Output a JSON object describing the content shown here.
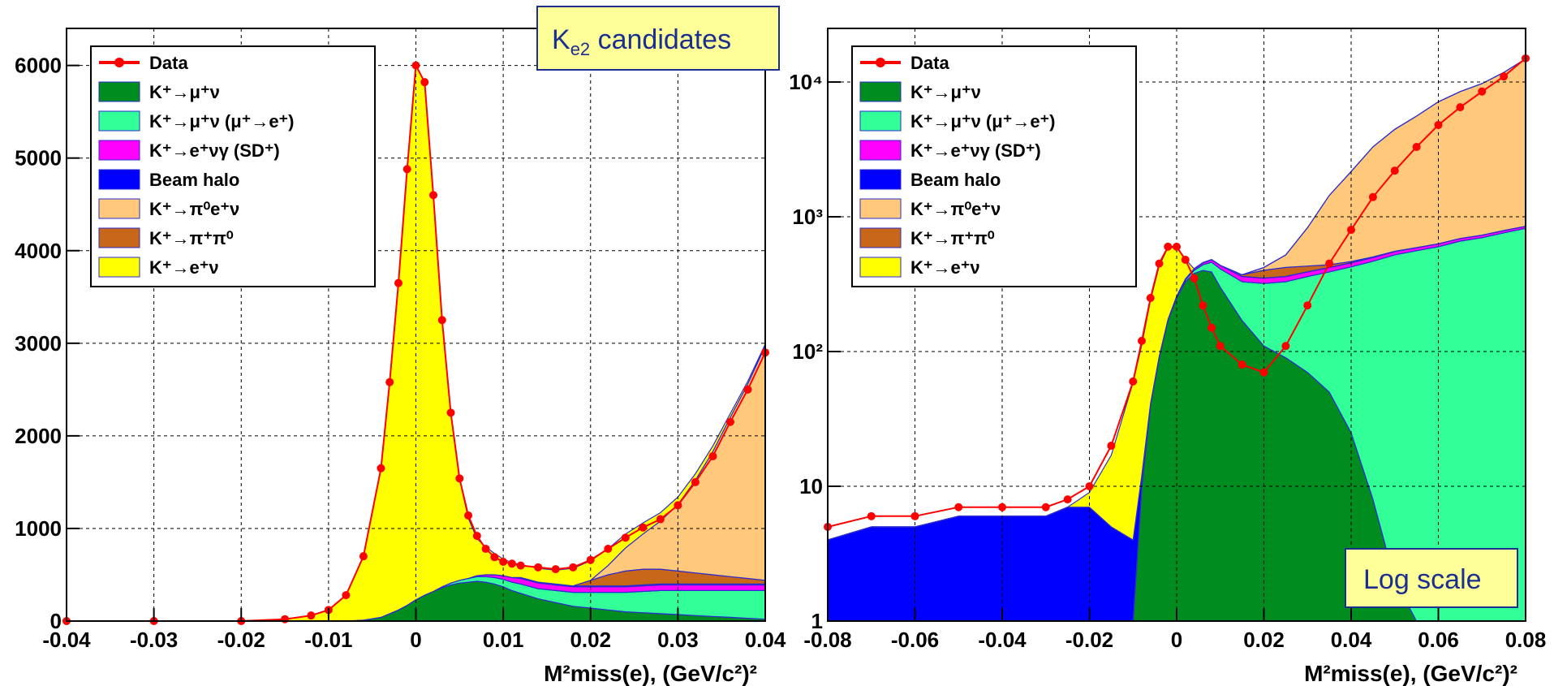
{
  "annotations": {
    "title_main": "K",
    "title_sub": "e2",
    "title_rest": " candidates",
    "log_note": "Log scale"
  },
  "colors": {
    "data": "#ff0000",
    "kmu2": "#008c1e",
    "kmu2_decay": "#33ff99",
    "sd": "#ff00ff",
    "halo": "#0000ff",
    "ke3": "#ffc87a",
    "k2pi": "#c8661a",
    "ke2": "#ffff00",
    "outline": "#2b2bd0"
  },
  "legend": [
    {
      "key": "data",
      "parts": [
        [
          "K",
          ""
        ]
      ],
      "label": "Data"
    },
    {
      "key": "kmu2",
      "label": "K⁺→μ⁺ν"
    },
    {
      "key": "kmu2_decay",
      "label": "K⁺→μ⁺ν (μ⁺→e⁺)"
    },
    {
      "key": "sd",
      "label": "K⁺→e⁺νγ (SD⁺)"
    },
    {
      "key": "halo",
      "label": "Beam halo"
    },
    {
      "key": "ke3",
      "label": "K⁺→π⁰e⁺ν"
    },
    {
      "key": "k2pi",
      "label": "K⁺→π⁺π⁰"
    },
    {
      "key": "ke2",
      "label": "K⁺→e⁺ν"
    }
  ],
  "chart_data": [
    {
      "type": "area",
      "scale": "linear",
      "xlabel": "M²miss(e), (GeV/c²)²",
      "xlim": [
        -0.04,
        0.04
      ],
      "ylim": [
        0,
        6400
      ],
      "xticks": [
        "-0.04",
        "-0.03",
        "-0.02",
        "-0.01",
        "0",
        "0.01",
        "0.02",
        "0.03",
        "0.04"
      ],
      "yticks": [
        "0",
        "1000",
        "2000",
        "3000",
        "4000",
        "5000",
        "6000"
      ],
      "grid": true,
      "legend_position": "top-left",
      "x": [
        -0.04,
        -0.03,
        -0.02,
        -0.015,
        -0.012,
        -0.01,
        -0.008,
        -0.006,
        -0.004,
        -0.003,
        -0.002,
        -0.001,
        0.0,
        0.001,
        0.002,
        0.003,
        0.004,
        0.005,
        0.006,
        0.007,
        0.008,
        0.009,
        0.01,
        0.011,
        0.012,
        0.014,
        0.016,
        0.018,
        0.02,
        0.022,
        0.024,
        0.026,
        0.028,
        0.03,
        0.032,
        0.034,
        0.036,
        0.038,
        0.04
      ],
      "series": [
        {
          "name": "Data",
          "values": [
            0,
            0,
            0,
            20,
            60,
            120,
            280,
            700,
            1650,
            2580,
            3650,
            4880,
            6000,
            5820,
            4600,
            3250,
            2250,
            1540,
            1140,
            920,
            780,
            690,
            640,
            620,
            600,
            580,
            560,
            580,
            660,
            780,
            900,
            1010,
            1100,
            1250,
            1500,
            1780,
            2150,
            2500,
            2900
          ]
        },
        {
          "name": "K⁺→μ⁺ν",
          "values": [
            0,
            0,
            0,
            0,
            0,
            0,
            0,
            10,
            40,
            80,
            120,
            170,
            230,
            280,
            320,
            360,
            390,
            410,
            420,
            430,
            420,
            400,
            370,
            330,
            300,
            240,
            200,
            160,
            140,
            120,
            100,
            90,
            80,
            70,
            60,
            50,
            40,
            30,
            20
          ]
        },
        {
          "name": "K⁺→μ⁺ν (μ⁺→e⁺)",
          "values": [
            0,
            0,
            0,
            0,
            0,
            0,
            0,
            0,
            0,
            0,
            0,
            0,
            0,
            0,
            0,
            10,
            20,
            30,
            40,
            50,
            60,
            70,
            80,
            90,
            100,
            110,
            130,
            150,
            170,
            190,
            210,
            230,
            250,
            260,
            270,
            280,
            290,
            300,
            310
          ]
        },
        {
          "name": "K⁺→e⁺νγ (SD⁺)",
          "values": [
            0,
            0,
            0,
            0,
            0,
            0,
            0,
            0,
            0,
            0,
            0,
            0,
            0,
            0,
            0,
            0,
            0,
            0,
            0,
            10,
            20,
            30,
            40,
            50,
            60,
            60,
            60,
            60,
            60,
            60,
            60,
            60,
            60,
            60,
            60,
            60,
            60,
            60,
            60
          ]
        },
        {
          "name": "Beam halo",
          "values": [
            0,
            0,
            0,
            0,
            0,
            0,
            0,
            0,
            0,
            0,
            0,
            0,
            0,
            0,
            0,
            0,
            0,
            0,
            0,
            0,
            0,
            0,
            0,
            0,
            10,
            10,
            10,
            10,
            10,
            10,
            10,
            10,
            10,
            10,
            10,
            10,
            10,
            10,
            10
          ]
        },
        {
          "name": "K⁺→π⁰e⁺ν",
          "values": [
            0,
            0,
            0,
            0,
            0,
            0,
            0,
            0,
            0,
            0,
            0,
            0,
            0,
            0,
            0,
            0,
            0,
            0,
            0,
            0,
            0,
            0,
            0,
            0,
            0,
            0,
            0,
            0,
            0,
            100,
            250,
            380,
            520,
            720,
            1000,
            1330,
            1720,
            2100,
            2530
          ]
        },
        {
          "name": "K⁺→π⁺π⁰",
          "values": [
            0,
            0,
            0,
            0,
            0,
            0,
            0,
            0,
            0,
            0,
            0,
            0,
            0,
            0,
            0,
            0,
            0,
            0,
            0,
            0,
            0,
            0,
            0,
            0,
            0,
            0,
            0,
            0,
            60,
            120,
            160,
            170,
            160,
            140,
            120,
            100,
            80,
            60,
            40
          ]
        },
        {
          "name": "K⁺→e⁺ν",
          "values": [
            0,
            0,
            0,
            20,
            60,
            120,
            280,
            690,
            1610,
            2500,
            3530,
            4710,
            5770,
            5540,
            4280,
            2880,
            1820,
            1090,
            650,
            400,
            300,
            230,
            180,
            160,
            140,
            150,
            150,
            190,
            210,
            180,
            150,
            120,
            90,
            80,
            70,
            60,
            40,
            30,
            20
          ]
        }
      ]
    },
    {
      "type": "area",
      "scale": "log",
      "xlabel": "M²miss(e), (GeV/c²)²",
      "xlim": [
        -0.08,
        0.08
      ],
      "ylim": [
        1,
        25000
      ],
      "xticks": [
        "-0.08",
        "-0.06",
        "-0.04",
        "-0.02",
        "0",
        "0.02",
        "0.04",
        "0.06",
        "0.08"
      ],
      "yticks": [
        "1",
        "10",
        "10²",
        "10³",
        "10⁴"
      ],
      "grid": true,
      "legend_position": "top-left",
      "x": [
        -0.08,
        -0.07,
        -0.06,
        -0.05,
        -0.04,
        -0.03,
        -0.025,
        -0.02,
        -0.015,
        -0.01,
        -0.008,
        -0.006,
        -0.004,
        -0.002,
        0.0,
        0.002,
        0.004,
        0.006,
        0.008,
        0.01,
        0.015,
        0.02,
        0.025,
        0.03,
        0.035,
        0.04,
        0.045,
        0.05,
        0.055,
        0.06,
        0.065,
        0.07,
        0.075,
        0.08
      ],
      "series": [
        {
          "name": "Data",
          "values": [
            5,
            6,
            6,
            7,
            7,
            7,
            8,
            10,
            20,
            60,
            120,
            250,
            450,
            600,
            600,
            480,
            350,
            220,
            150,
            110,
            80,
            70,
            110,
            220,
            450,
            800,
            1400,
            2200,
            3300,
            4800,
            6500,
            8500,
            11000,
            15000
          ]
        },
        {
          "name": "K⁺→μ⁺ν",
          "values": [
            0,
            0,
            0,
            0,
            0,
            0,
            0,
            0,
            0,
            1,
            10,
            40,
            90,
            170,
            250,
            330,
            380,
            400,
            390,
            300,
            170,
            110,
            90,
            70,
            50,
            25,
            8,
            2,
            0,
            0,
            0,
            0,
            0,
            0
          ]
        },
        {
          "name": "K⁺→μ⁺ν (μ⁺→e⁺)",
          "values": [
            0,
            0,
            0,
            0,
            0,
            0,
            0,
            0,
            0,
            0,
            0,
            0,
            1,
            2,
            5,
            10,
            20,
            40,
            70,
            110,
            160,
            210,
            240,
            290,
            340,
            400,
            460,
            520,
            560,
            600,
            660,
            700,
            760,
            820
          ]
        },
        {
          "name": "K⁺→e⁺νγ (SD⁺)",
          "values": [
            0,
            0,
            0,
            0,
            0,
            0,
            0,
            0,
            0,
            0,
            0,
            0,
            0,
            0,
            2,
            5,
            10,
            15,
            20,
            25,
            30,
            30,
            30,
            30,
            30,
            30,
            30,
            30,
            30,
            30,
            30,
            30,
            30,
            30
          ]
        },
        {
          "name": "Beam halo",
          "values": [
            4,
            5,
            5,
            6,
            6,
            6,
            7,
            7,
            5,
            3,
            2,
            1,
            1,
            1,
            1,
            1,
            1,
            1,
            1,
            1,
            1,
            1,
            1,
            1,
            1,
            1,
            1,
            1,
            1,
            1,
            1,
            1,
            1,
            1
          ]
        },
        {
          "name": "K⁺→π⁰e⁺ν",
          "values": [
            0,
            0,
            0,
            0,
            0,
            0,
            0,
            0,
            0,
            0,
            0,
            0,
            0,
            0,
            0,
            0,
            0,
            0,
            0,
            0,
            0,
            20,
            100,
            400,
            1000,
            1700,
            2800,
            3900,
            5000,
            6500,
            7800,
            9000,
            11000,
            14000
          ]
        },
        {
          "name": "K⁺→π⁺π⁰",
          "values": [
            0,
            0,
            0,
            0,
            0,
            0,
            0,
            0,
            0,
            0,
            0,
            0,
            0,
            0,
            0,
            0,
            0,
            0,
            0,
            0,
            10,
            50,
            60,
            40,
            20,
            10,
            5,
            2,
            0,
            0,
            0,
            0,
            0,
            0
          ]
        },
        {
          "name": "K⁺→e⁺ν",
          "values": [
            0,
            0,
            0,
            0,
            0,
            0,
            0,
            2,
            12,
            55,
            100,
            200,
            340,
            420,
            330,
            140,
            0,
            0,
            0,
            0,
            0,
            0,
            0,
            0,
            0,
            0,
            0,
            0,
            0,
            0,
            0,
            0,
            0,
            0
          ]
        }
      ]
    }
  ]
}
